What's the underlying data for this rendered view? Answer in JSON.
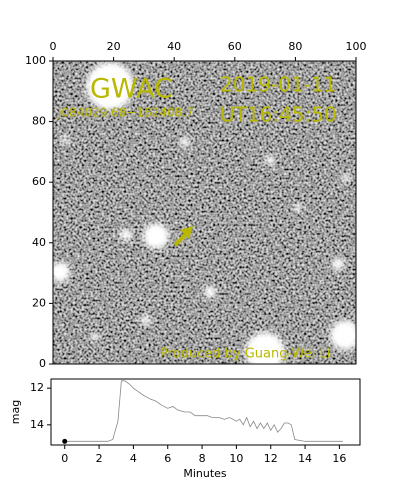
{
  "chart_data": [
    {
      "type": "image",
      "xlim": [
        0,
        100
      ],
      "ylim": [
        0,
        100
      ],
      "xticks": [
        0,
        20,
        40,
        60,
        80,
        100
      ],
      "yticks": [
        0,
        20,
        40,
        60,
        80,
        100
      ],
      "annotations": [
        "GWAC",
        "2019-01-11",
        "UT16:45:50",
        "J084029.68+182408.7",
        "Produced by Guang-Wei Li"
      ],
      "annotation_color": "#b8b800"
    },
    {
      "type": "line",
      "xlabel": "Minutes",
      "ylabel": "mag",
      "xlim": [
        -0.8,
        17.2
      ],
      "ylim": [
        15.1,
        11.5
      ],
      "xticks": [
        0,
        2,
        4,
        6,
        8,
        10,
        12,
        14,
        16
      ],
      "yticks": [
        12,
        14
      ],
      "x": [
        0,
        0.5,
        1,
        1.5,
        2,
        2.5,
        2.8,
        3.1,
        3.3,
        3.5,
        3.8,
        4,
        4.3,
        4.6,
        5,
        5.3,
        5.6,
        6,
        6.3,
        6.6,
        7,
        7.3,
        7.6,
        8,
        8.3,
        8.6,
        9,
        9.3,
        9.6,
        10,
        10.2,
        10.4,
        10.6,
        10.8,
        11,
        11.2,
        11.4,
        11.6,
        11.8,
        12,
        12.2,
        12.4,
        12.6,
        12.8,
        13,
        13.2,
        13.4,
        14,
        15,
        16.2
      ],
      "series": [
        {
          "color": "#888888",
          "values": [
            14.9,
            14.9,
            14.9,
            14.9,
            14.9,
            14.9,
            14.8,
            13.8,
            11.6,
            11.6,
            11.8,
            12.0,
            12.2,
            12.4,
            12.6,
            12.7,
            12.9,
            13.1,
            13.0,
            13.2,
            13.3,
            13.3,
            13.5,
            13.5,
            13.5,
            13.6,
            13.6,
            13.7,
            13.6,
            13.8,
            13.7,
            14.0,
            13.6,
            14.1,
            13.8,
            14.2,
            13.9,
            14.2,
            13.9,
            14.3,
            14.0,
            14.4,
            14.2,
            13.9,
            13.9,
            14.0,
            14.8,
            14.9,
            14.9,
            14.9
          ]
        }
      ],
      "marker": {
        "x": 0,
        "y": 14.9,
        "color": "#000000"
      }
    }
  ]
}
